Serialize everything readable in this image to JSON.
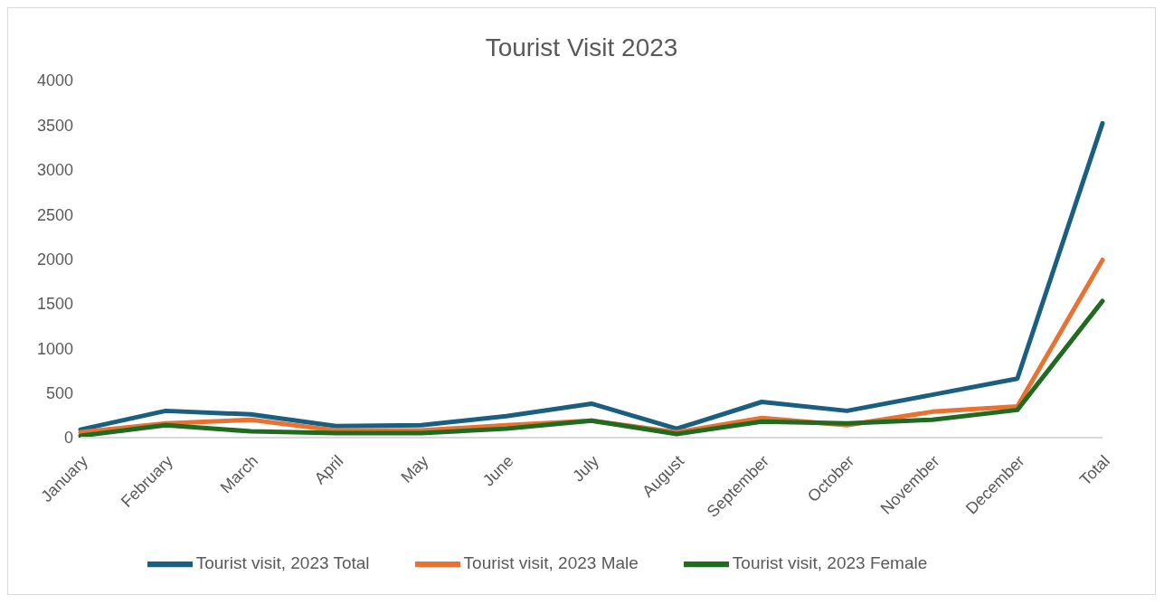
{
  "chart_data": {
    "type": "line",
    "title": "Tourist Visit 2023",
    "categories": [
      "January",
      "February",
      "March",
      "April",
      "May",
      "June",
      "July",
      "August",
      "September",
      "October",
      "November",
      "December",
      "Total"
    ],
    "series": [
      {
        "name": "Tourist visit, 2023 Total",
        "color": "#1a5e80",
        "values": [
          90,
          300,
          260,
          130,
          140,
          240,
          380,
          100,
          400,
          300,
          480,
          660,
          3520
        ]
      },
      {
        "name": "Tourist visit, 2023 Male",
        "color": "#e97132",
        "values": [
          60,
          160,
          200,
          80,
          80,
          140,
          190,
          60,
          220,
          140,
          290,
          350,
          1990
        ]
      },
      {
        "name": "Tourist visit, 2023 Female",
        "color": "#1f6b1f",
        "values": [
          20,
          140,
          70,
          50,
          50,
          100,
          190,
          40,
          180,
          160,
          200,
          310,
          1530
        ]
      }
    ],
    "ylim": [
      0,
      4000
    ],
    "yticks": [
      0,
      500,
      1000,
      1500,
      2000,
      2500,
      3000,
      3500,
      4000
    ],
    "grid": false,
    "legend": "bottom",
    "marker": "none",
    "line_style": "solid"
  }
}
